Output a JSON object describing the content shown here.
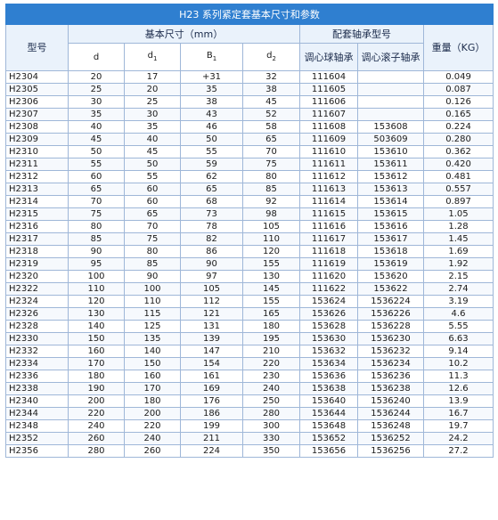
{
  "title": "H23 系列紧定套基本尺寸和参数",
  "headers": {
    "model": "型号",
    "basic_dims": "基本尺寸（mm）",
    "bearing_model": "配套轴承型号",
    "weight": "重量（KG）",
    "d": "d",
    "d1_base": "d",
    "d1_sub": "1",
    "B1_base": "B",
    "B1_sub": "1",
    "d2_base": "d",
    "d2_sub": "2",
    "ball": "调心球轴承",
    "roller": "调心滚子轴承"
  },
  "rows": [
    [
      "H2304",
      "20",
      "17",
      "+31",
      "32",
      "111604",
      "",
      "0.049"
    ],
    [
      "H2305",
      "25",
      "20",
      "35",
      "38",
      "111605",
      "",
      "0.087"
    ],
    [
      "H2306",
      "30",
      "25",
      "38",
      "45",
      "111606",
      "",
      "0.126"
    ],
    [
      "H2307",
      "35",
      "30",
      "43",
      "52",
      "111607",
      "",
      "0.165"
    ],
    [
      "H2308",
      "40",
      "35",
      "46",
      "58",
      "111608",
      "153608",
      "0.224"
    ],
    [
      "H2309",
      "45",
      "40",
      "50",
      "65",
      "111609",
      "503609",
      "0.280"
    ],
    [
      "H2310",
      "50",
      "45",
      "55",
      "70",
      "111610",
      "153610",
      "0.362"
    ],
    [
      "H2311",
      "55",
      "50",
      "59",
      "75",
      "111611",
      "153611",
      "0.420"
    ],
    [
      "H2312",
      "60",
      "55",
      "62",
      "80",
      "111612",
      "153612",
      "0.481"
    ],
    [
      "H2313",
      "65",
      "60",
      "65",
      "85",
      "111613",
      "153613",
      "0.557"
    ],
    [
      "H2314",
      "70",
      "60",
      "68",
      "92",
      "111614",
      "153614",
      "0.897"
    ],
    [
      "H2315",
      "75",
      "65",
      "73",
      "98",
      "111615",
      "153615",
      "1.05"
    ],
    [
      "H2316",
      "80",
      "70",
      "78",
      "105",
      "111616",
      "153616",
      "1.28"
    ],
    [
      "H2317",
      "85",
      "75",
      "82",
      "110",
      "111617",
      "153617",
      "1.45"
    ],
    [
      "H2318",
      "90",
      "80",
      "86",
      "120",
      "111618",
      "153618",
      "1.69"
    ],
    [
      "H2319",
      "95",
      "85",
      "90",
      "155",
      "111619",
      "153619",
      "1.92"
    ],
    [
      "H2320",
      "100",
      "90",
      "97",
      "130",
      "111620",
      "153620",
      "2.15"
    ],
    [
      "H2322",
      "110",
      "100",
      "105",
      "145",
      "111622",
      "153622",
      "2.74"
    ],
    [
      "H2324",
      "120",
      "110",
      "112",
      "155",
      "153624",
      "1536224",
      "3.19"
    ],
    [
      "H2326",
      "130",
      "115",
      "121",
      "165",
      "153626",
      "1536226",
      "4.6"
    ],
    [
      "H2328",
      "140",
      "125",
      "131",
      "180",
      "153628",
      "1536228",
      "5.55"
    ],
    [
      "H2330",
      "150",
      "135",
      "139",
      "195",
      "153630",
      "1536230",
      "6.63"
    ],
    [
      "H2332",
      "160",
      "140",
      "147",
      "210",
      "153632",
      "1536232",
      "9.14"
    ],
    [
      "H2334",
      "170",
      "150",
      "154",
      "220",
      "153634",
      "1536234",
      "10.2"
    ],
    [
      "H2336",
      "180",
      "160",
      "161",
      "230",
      "153636",
      "1536236",
      "11.3"
    ],
    [
      "H2338",
      "190",
      "170",
      "169",
      "240",
      "153638",
      "1536238",
      "12.6"
    ],
    [
      "H2340",
      "200",
      "180",
      "176",
      "250",
      "153640",
      "1536240",
      "13.9"
    ],
    [
      "H2344",
      "220",
      "200",
      "186",
      "280",
      "153644",
      "1536244",
      "16.7"
    ],
    [
      "H2348",
      "240",
      "220",
      "199",
      "300",
      "153648",
      "1536248",
      "19.7"
    ],
    [
      "H2352",
      "260",
      "240",
      "211",
      "330",
      "153652",
      "1536252",
      "24.2"
    ],
    [
      "H2356",
      "280",
      "260",
      "224",
      "350",
      "153656",
      "1536256",
      "27.2"
    ]
  ]
}
